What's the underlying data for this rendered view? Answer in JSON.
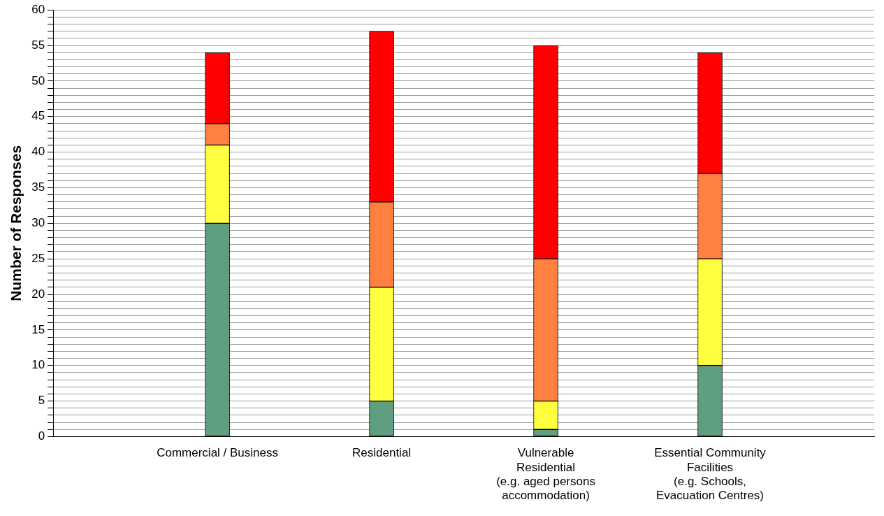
{
  "chart_data": {
    "type": "bar",
    "stacked": true,
    "ylabel": "Number of Responses",
    "categories": [
      "Commercial / Business",
      "Residential",
      "Vulnerable\nResidential\n(e.g. aged persons\naccommodation)",
      "Essential Community\nFacilities\n(e.g. Schools,\nEvacuation Centres)"
    ],
    "series": [
      {
        "color": "#5f9f80",
        "values": [
          30,
          5,
          1,
          10
        ]
      },
      {
        "color": "#ffff40",
        "values": [
          11,
          16,
          4,
          15
        ]
      },
      {
        "color": "#ff8040",
        "values": [
          3,
          12,
          20,
          12
        ]
      },
      {
        "color": "#ff0000",
        "values": [
          10,
          24,
          30,
          17
        ]
      }
    ],
    "ylim": [
      0,
      60
    ],
    "yticks": [
      0,
      {
        "value": 1,
        "label": null
      },
      {
        "value": 2,
        "label": null
      },
      {
        "value": 3,
        "label": null
      },
      {
        "value": 4,
        "label": null
      },
      5,
      {
        "value": 6,
        "label": null
      },
      {
        "value": 7,
        "label": null
      },
      {
        "value": 8,
        "label": null
      },
      {
        "value": 9,
        "label": null
      },
      10,
      {
        "value": 11,
        "label": null
      },
      {
        "value": 12,
        "label": null
      },
      {
        "value": 13,
        "label": null
      },
      {
        "value": 14,
        "label": null
      },
      15,
      {
        "value": 16,
        "label": null
      },
      {
        "value": 17,
        "label": null
      },
      {
        "value": 18,
        "label": null
      },
      {
        "value": 19,
        "label": null
      },
      20,
      {
        "value": 21,
        "label": null
      },
      {
        "value": 22,
        "label": null
      },
      {
        "value": 23,
        "label": null
      },
      {
        "value": 24,
        "label": null
      },
      25,
      {
        "value": 26,
        "label": null
      },
      {
        "value": 27,
        "label": null
      },
      {
        "value": 28,
        "label": null
      },
      {
        "value": 29,
        "label": null
      },
      30,
      {
        "value": 31,
        "label": null
      },
      {
        "value": 32,
        "label": null
      },
      {
        "value": 33,
        "label": null
      },
      {
        "value": 34,
        "label": null
      },
      35,
      {
        "value": 36,
        "label": null
      },
      {
        "value": 37,
        "label": null
      },
      {
        "value": 38,
        "label": null
      },
      {
        "value": 39,
        "label": null
      },
      40,
      {
        "value": 41,
        "label": null
      },
      {
        "value": 42,
        "label": null
      },
      {
        "value": 43,
        "label": null
      },
      {
        "value": 44,
        "label": null
      },
      45,
      {
        "value": 46,
        "label": null
      },
      {
        "value": 47,
        "label": null
      },
      {
        "value": 48,
        "label": null
      },
      {
        "value": 49,
        "label": null
      },
      50,
      {
        "value": 51,
        "label": null
      },
      {
        "value": 52,
        "label": null
      },
      {
        "value": 53,
        "label": null
      },
      {
        "value": 54,
        "label": null
      },
      55,
      {
        "value": 56,
        "label": null
      },
      {
        "value": 57,
        "label": null
      },
      {
        "value": 58,
        "label": null
      },
      {
        "value": 59,
        "label": null
      },
      60
    ],
    "grid": "y",
    "legend": false
  }
}
